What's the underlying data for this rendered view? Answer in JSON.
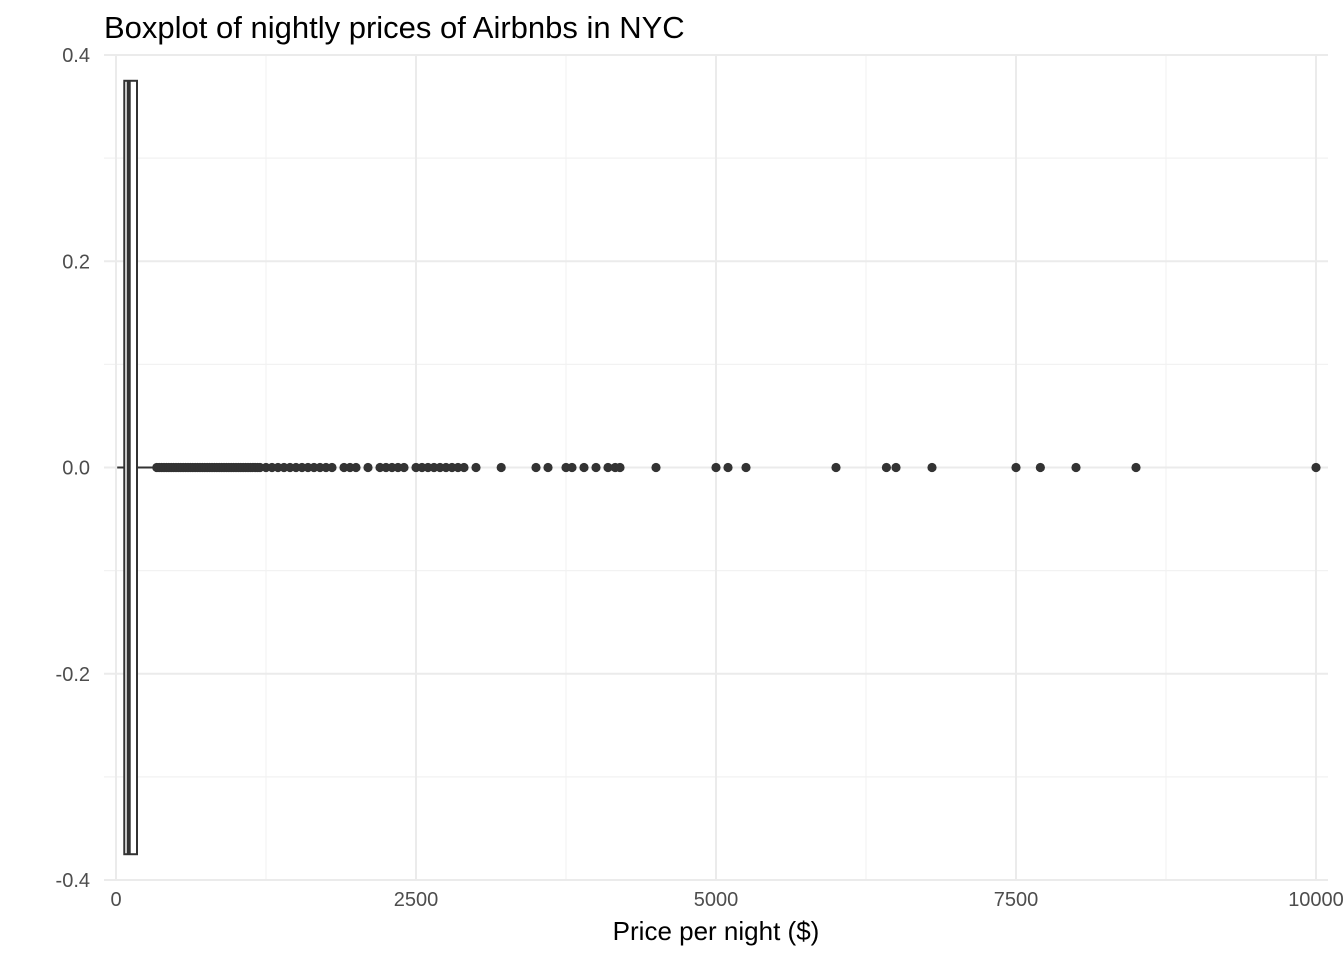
{
  "chart_data": {
    "type": "boxplot",
    "title": "Boxplot of nightly prices of Airbnbs in NYC",
    "xlabel": "Price per night ($)",
    "ylabel": "",
    "xlim": [
      -100,
      10100
    ],
    "ylim": [
      -0.4,
      0.4
    ],
    "x_ticks": [
      0,
      2500,
      5000,
      7500,
      10000
    ],
    "x_tick_labels": [
      "0",
      "2500",
      "5000",
      "7500",
      "10000"
    ],
    "y_ticks": [
      -0.4,
      -0.2,
      0.0,
      0.2,
      0.4
    ],
    "y_tick_labels": [
      "-0.4",
      "-0.2",
      "0.0",
      "0.2",
      "0.4"
    ],
    "grid": true,
    "box": {
      "min": 10,
      "q1": 69,
      "median": 106,
      "q3": 175,
      "whisker_high": 334,
      "y_center": 0.0,
      "half_height": 0.375
    },
    "outliers": [
      340,
      360,
      380,
      400,
      420,
      440,
      460,
      480,
      500,
      520,
      540,
      560,
      580,
      600,
      620,
      640,
      660,
      680,
      700,
      720,
      740,
      760,
      780,
      800,
      820,
      840,
      860,
      880,
      900,
      920,
      940,
      960,
      980,
      1000,
      1020,
      1040,
      1060,
      1080,
      1100,
      1120,
      1140,
      1160,
      1180,
      1200,
      1250,
      1300,
      1350,
      1400,
      1450,
      1500,
      1550,
      1600,
      1650,
      1700,
      1750,
      1800,
      1900,
      1950,
      2000,
      2100,
      2200,
      2250,
      2300,
      2350,
      2400,
      2500,
      2550,
      2600,
      2650,
      2700,
      2750,
      2800,
      2850,
      2900,
      3000,
      3210,
      3500,
      3600,
      3750,
      3800,
      3900,
      4000,
      4100,
      4160,
      4200,
      4500,
      5000,
      5100,
      5250,
      6000,
      6420,
      6500,
      6800,
      7500,
      7703,
      8000,
      8500,
      10000
    ],
    "colors": {
      "box_fill": "#ffffff",
      "box_stroke": "#333333",
      "point": "#333333",
      "grid_major": "#ebebeb",
      "grid_minor": "#f2f2f2"
    }
  }
}
